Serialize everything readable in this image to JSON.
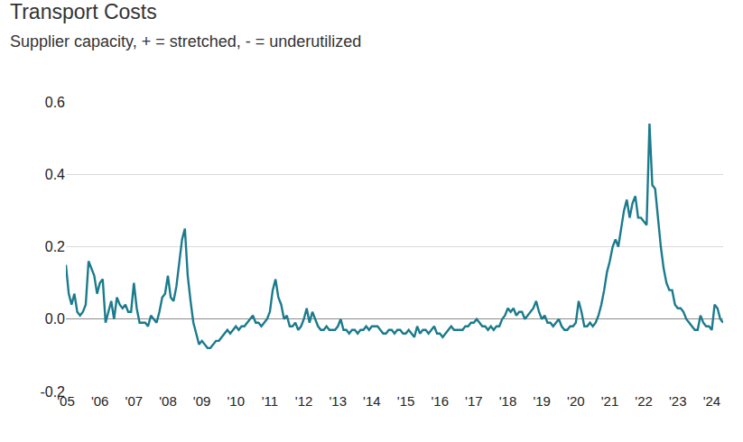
{
  "chart_data": {
    "type": "line",
    "title": "Transport Costs",
    "subtitle": "Supplier capacity, + = stretched, - = underutilized",
    "color": "#1b7b8c",
    "grid": true,
    "ylim": [
      -0.2,
      0.6
    ],
    "yticks": [
      -0.2,
      {
        "value": 0,
        "label": "0.0"
      },
      0.2,
      0.4,
      0.6
    ],
    "categories": [
      "'05",
      null,
      null,
      null,
      null,
      null,
      null,
      null,
      null,
      null,
      null,
      null,
      "'06",
      null,
      null,
      null,
      null,
      null,
      null,
      null,
      null,
      null,
      null,
      null,
      "'07",
      null,
      null,
      null,
      null,
      null,
      null,
      null,
      null,
      null,
      null,
      null,
      "'08",
      null,
      null,
      null,
      null,
      null,
      null,
      null,
      null,
      null,
      null,
      null,
      "'09",
      null,
      null,
      null,
      null,
      null,
      null,
      null,
      null,
      null,
      null,
      null,
      "'10",
      null,
      null,
      null,
      null,
      null,
      null,
      null,
      null,
      null,
      null,
      null,
      "'11",
      null,
      null,
      null,
      null,
      null,
      null,
      null,
      null,
      null,
      null,
      null,
      "'12",
      null,
      null,
      null,
      null,
      null,
      null,
      null,
      null,
      null,
      null,
      null,
      "'13",
      null,
      null,
      null,
      null,
      null,
      null,
      null,
      null,
      null,
      null,
      null,
      "'14",
      null,
      null,
      null,
      null,
      null,
      null,
      null,
      null,
      null,
      null,
      null,
      "'15",
      null,
      null,
      null,
      null,
      null,
      null,
      null,
      null,
      null,
      null,
      null,
      "'16",
      null,
      null,
      null,
      null,
      null,
      null,
      null,
      null,
      null,
      null,
      null,
      "'17",
      null,
      null,
      null,
      null,
      null,
      null,
      null,
      null,
      null,
      null,
      null,
      "'18",
      null,
      null,
      null,
      null,
      null,
      null,
      null,
      null,
      null,
      null,
      null,
      "'19",
      null,
      null,
      null,
      null,
      null,
      null,
      null,
      null,
      null,
      null,
      null,
      "'20",
      null,
      null,
      null,
      null,
      null,
      null,
      null,
      null,
      null,
      null,
      null,
      "'21",
      null,
      null,
      null,
      null,
      null,
      null,
      null,
      null,
      null,
      null,
      null,
      "'22",
      null,
      null,
      null,
      null,
      null,
      null,
      null,
      null,
      null,
      null,
      null,
      "'23",
      null,
      null,
      null,
      null,
      null,
      null,
      null,
      null,
      null,
      null,
      null,
      "'24",
      null,
      null,
      null,
      null
    ],
    "values": [
      0.15,
      0.07,
      0.04,
      0.07,
      0.02,
      0.01,
      0.02,
      0.04,
      0.16,
      0.14,
      0.12,
      0.07,
      0.1,
      0.11,
      -0.01,
      0.02,
      0.05,
      0.0,
      0.06,
      0.04,
      0.03,
      0.04,
      0.02,
      0.02,
      0.1,
      0.03,
      -0.01,
      -0.01,
      -0.01,
      -0.02,
      0.01,
      0.0,
      -0.01,
      0.02,
      0.06,
      0.07,
      0.12,
      0.06,
      0.05,
      0.09,
      0.15,
      0.22,
      0.25,
      0.12,
      0.05,
      -0.01,
      -0.04,
      -0.07,
      -0.06,
      -0.07,
      -0.08,
      -0.08,
      -0.07,
      -0.06,
      -0.06,
      -0.05,
      -0.04,
      -0.03,
      -0.04,
      -0.03,
      -0.02,
      -0.03,
      -0.02,
      -0.02,
      -0.01,
      0.0,
      0.01,
      -0.01,
      -0.01,
      -0.02,
      -0.01,
      0.0,
      0.02,
      0.08,
      0.11,
      0.06,
      0.04,
      0.0,
      0.01,
      -0.02,
      -0.02,
      -0.01,
      -0.03,
      -0.02,
      0.0,
      0.03,
      -0.01,
      0.02,
      0.0,
      -0.02,
      -0.03,
      -0.03,
      -0.02,
      -0.03,
      -0.03,
      -0.03,
      -0.02,
      0.0,
      -0.03,
      -0.03,
      -0.04,
      -0.03,
      -0.03,
      -0.04,
      -0.03,
      -0.03,
      -0.02,
      -0.03,
      -0.02,
      -0.02,
      -0.02,
      -0.03,
      -0.04,
      -0.04,
      -0.03,
      -0.03,
      -0.04,
      -0.03,
      -0.03,
      -0.04,
      -0.04,
      -0.03,
      -0.04,
      -0.05,
      -0.02,
      -0.04,
      -0.03,
      -0.03,
      -0.04,
      -0.03,
      -0.02,
      -0.04,
      -0.04,
      -0.05,
      -0.04,
      -0.03,
      -0.02,
      -0.03,
      -0.03,
      -0.03,
      -0.03,
      -0.02,
      -0.02,
      -0.01,
      -0.01,
      0.0,
      -0.01,
      -0.02,
      -0.02,
      -0.03,
      -0.02,
      -0.03,
      -0.02,
      -0.02,
      0.0,
      0.01,
      0.03,
      0.02,
      0.03,
      0.01,
      0.02,
      0.02,
      0.0,
      0.01,
      0.02,
      0.03,
      0.05,
      0.02,
      0.0,
      0.01,
      -0.01,
      -0.01,
      -0.02,
      -0.01,
      0.0,
      -0.02,
      -0.03,
      -0.03,
      -0.02,
      -0.02,
      -0.01,
      0.05,
      0.02,
      -0.02,
      -0.02,
      -0.01,
      -0.02,
      -0.01,
      0.01,
      0.04,
      0.08,
      0.13,
      0.16,
      0.2,
      0.22,
      0.2,
      0.25,
      0.3,
      0.33,
      0.28,
      0.32,
      0.34,
      0.28,
      0.28,
      0.27,
      0.26,
      0.54,
      0.37,
      0.36,
      0.28,
      0.2,
      0.14,
      0.1,
      0.08,
      0.08,
      0.04,
      0.03,
      0.03,
      0.02,
      0.0,
      -0.01,
      -0.02,
      -0.03,
      -0.03,
      0.01,
      -0.01,
      -0.02,
      -0.02,
      -0.03,
      0.04,
      0.03,
      0.0,
      -0.01
    ]
  }
}
